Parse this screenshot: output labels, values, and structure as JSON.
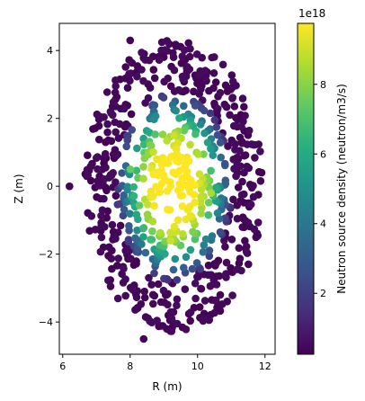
{
  "chart_data": {
    "type": "scatter",
    "title": "",
    "xlabel": "R (m)",
    "ylabel": "Z (m)",
    "xlim": [
      5.9,
      12.3
    ],
    "ylim": [
      -4.95,
      4.8
    ],
    "xticks": [
      6,
      8,
      10,
      12
    ],
    "yticks": [
      -4,
      -2,
      0,
      2,
      4
    ],
    "grid": false,
    "legend": "none",
    "colorbar": {
      "label": "Neutron source density (neutron/m3/s)",
      "multiplier": "1e18",
      "range": [
        0.25,
        9.75
      ],
      "ticks": [
        2,
        4,
        6,
        8
      ],
      "colormap": "viridis"
    },
    "distribution": {
      "center_R": 9.3,
      "center_Z": 0.0,
      "semi_axis_R": 3.0,
      "semi_axis_Z": 4.4,
      "peak_value": 9.75,
      "point_count": 760
    },
    "series": [
      {
        "points_sample": [
          {
            "x": 8.0,
            "y": 4.3,
            "v": 0.3
          },
          {
            "x": 8.4,
            "y": -4.5,
            "v": 0.3
          },
          {
            "x": 6.2,
            "y": 0.0,
            "v": 0.3
          },
          {
            "x": 11.9,
            "y": 0.4,
            "v": 0.3
          },
          {
            "x": 9.2,
            "y": 0.0,
            "v": 9.7
          },
          {
            "x": 9.3,
            "y": 1.5,
            "v": 9.0
          },
          {
            "x": 9.2,
            "y": -1.6,
            "v": 9.0
          },
          {
            "x": 8.0,
            "y": 0.5,
            "v": 7.5
          },
          {
            "x": 10.4,
            "y": -0.2,
            "v": 8.5
          }
        ]
      }
    ]
  }
}
